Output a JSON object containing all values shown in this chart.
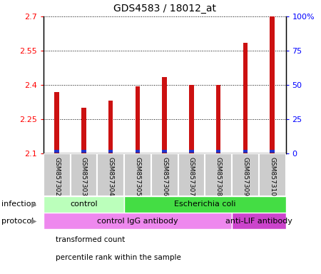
{
  "title": "GDS4583 / 18012_at",
  "samples": [
    "GSM857302",
    "GSM857303",
    "GSM857304",
    "GSM857305",
    "GSM857306",
    "GSM857307",
    "GSM857308",
    "GSM857309",
    "GSM857310"
  ],
  "transformed_count": [
    2.37,
    2.3,
    2.33,
    2.395,
    2.435,
    2.4,
    2.4,
    2.585,
    2.7
  ],
  "ylim": [
    2.1,
    2.7
  ],
  "y_ticks": [
    2.1,
    2.25,
    2.4,
    2.55,
    2.7
  ],
  "y_tick_labels": [
    "2.1",
    "2.25",
    "2.4",
    "2.55",
    "2.7"
  ],
  "right_yticks": [
    0,
    25,
    50,
    75,
    100
  ],
  "right_ytick_labels": [
    "0",
    "25",
    "50",
    "75",
    "100%"
  ],
  "bar_color_red": "#cc1111",
  "bar_color_blue": "#2233cc",
  "infection_groups": [
    {
      "label": "control",
      "start": 0,
      "end": 3,
      "color": "#bbffbb"
    },
    {
      "label": "Escherichia coli",
      "start": 3,
      "end": 9,
      "color": "#44dd44"
    }
  ],
  "protocol_groups": [
    {
      "label": "control IgG antibody",
      "start": 0,
      "end": 7,
      "color": "#ee88ee"
    },
    {
      "label": "anti-LIF antibody",
      "start": 7,
      "end": 9,
      "color": "#cc44cc"
    }
  ],
  "legend_items": [
    {
      "label": "transformed count",
      "color": "#cc1111"
    },
    {
      "label": "percentile rank within the sample",
      "color": "#2233cc"
    }
  ],
  "bar_bg_color": "#cccccc",
  "infection_label": "infection",
  "protocol_label": "protocol"
}
